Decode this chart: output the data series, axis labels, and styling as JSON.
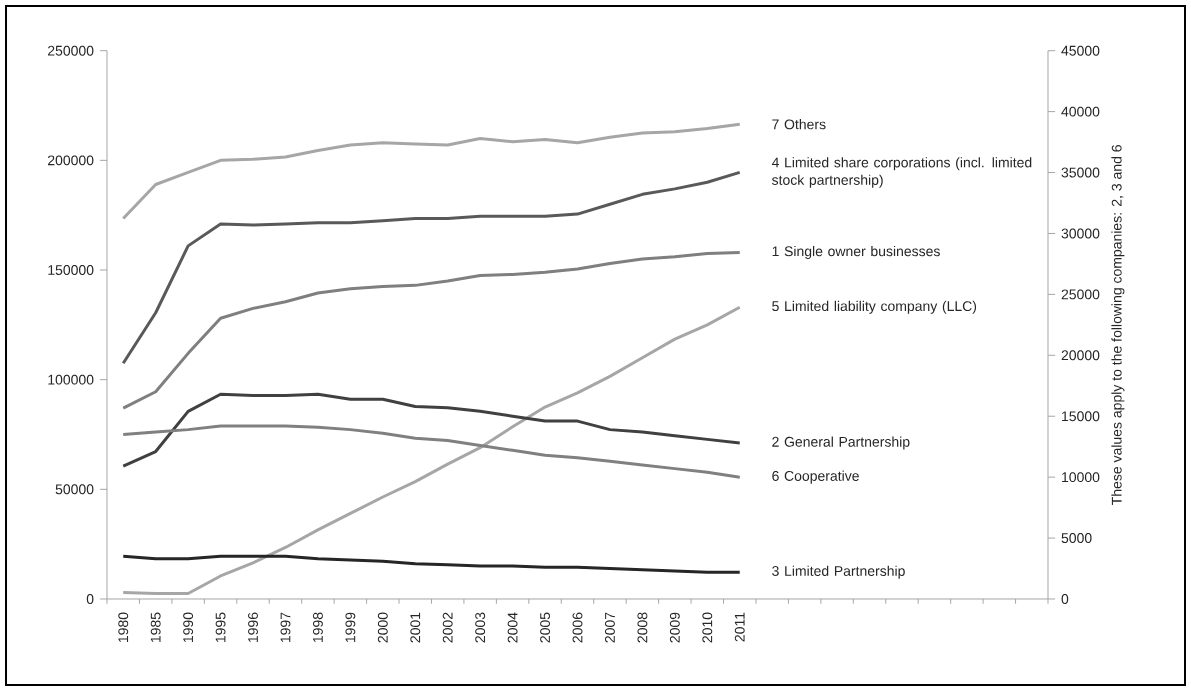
{
  "chart_data": {
    "type": "line",
    "categories": [
      "1980",
      "1985",
      "1990",
      "1995",
      "1996",
      "1997",
      "1998",
      "1999",
      "2000",
      "2001",
      "2002",
      "2003",
      "2004",
      "2005",
      "2006",
      "2007",
      "2008",
      "2009",
      "2010",
      "2011",
      null,
      null,
      null,
      null,
      null,
      null,
      null,
      null,
      null
    ],
    "y2label": "These values apply to the following companies: 2, 3 and 6",
    "ylim": [
      0,
      250000
    ],
    "yticks": [
      0,
      50000,
      100000,
      150000,
      200000,
      250000
    ],
    "y2lim": [
      0,
      45000
    ],
    "y2ticks": [
      0,
      5000,
      10000,
      15000,
      20000,
      25000,
      30000,
      35000,
      40000,
      45000
    ],
    "series": [
      {
        "name": "7 Others",
        "color": "#a6a6a6",
        "values": [
          173500,
          189000,
          194500,
          200000,
          200500,
          201500,
          204500,
          207000,
          208000,
          207500,
          207000,
          210000,
          208500,
          209500,
          208000,
          210500,
          212500,
          213000,
          214500,
          216500,
          null,
          null,
          null,
          null,
          null,
          null,
          null,
          null,
          null
        ]
      },
      {
        "name": "4 Limited share corporations (incl. limited stock partnership)",
        "color": "#595959",
        "values": [
          107500,
          130500,
          161000,
          171000,
          170500,
          171000,
          171500,
          171500,
          172500,
          173500,
          173500,
          174500,
          174500,
          174500,
          175500,
          180000,
          184500,
          187000,
          190000,
          194500,
          null,
          null,
          null,
          null,
          null,
          null,
          null,
          null,
          null
        ]
      },
      {
        "name": "1 Single owner  businesses",
        "color": "#7f7f7f",
        "values": [
          87000,
          94500,
          112000,
          128000,
          132500,
          135500,
          139500,
          141500,
          142500,
          143000,
          145000,
          147500,
          148000,
          149000,
          150500,
          153000,
          155000,
          156000,
          157500,
          158000,
          null,
          null,
          null,
          null,
          null,
          null,
          null,
          null,
          null
        ]
      },
      {
        "name": "5 Limited liability company (LLC)",
        "color": "#a6a6a6",
        "values": [
          3000,
          2500,
          2500,
          10500,
          16500,
          23500,
          31500,
          39000,
          46500,
          53500,
          61500,
          69000,
          78500,
          87500,
          94000,
          101500,
          110000,
          118500,
          125000,
          133000,
          null,
          null,
          null,
          null,
          null,
          null,
          null,
          null,
          null
        ]
      },
      {
        "name": "2 General Partnership",
        "color": "#404040",
        "axis": "y2",
        "values": [
          10900,
          12100,
          15400,
          16800,
          16700,
          16700,
          16800,
          16400,
          16400,
          15800,
          15700,
          15400,
          15000,
          14600,
          14600,
          13900,
          13700,
          13400,
          13100,
          12800,
          null,
          null,
          null,
          null,
          null,
          null,
          null,
          null,
          null
        ]
      },
      {
        "name": "6 Cooperative",
        "color": "#808080",
        "axis": "y2",
        "values": [
          13500,
          13700,
          13900,
          14200,
          14200,
          14200,
          14100,
          13900,
          13600,
          13200,
          13000,
          12600,
          12200,
          11800,
          11600,
          11300,
          11000,
          10700,
          10400,
          10000,
          null,
          null,
          null,
          null,
          null,
          null,
          null,
          null,
          null
        ]
      },
      {
        "name": "3 Limited Partnership",
        "color": "#262626",
        "axis": "y2",
        "values": [
          3500,
          3300,
          3300,
          3500,
          3500,
          3500,
          3300,
          3200,
          3100,
          2900,
          2800,
          2700,
          2700,
          2600,
          2600,
          2500,
          2400,
          2300,
          2200,
          2200,
          null,
          null,
          null,
          null,
          null,
          null,
          null,
          null,
          null
        ]
      }
    ]
  }
}
